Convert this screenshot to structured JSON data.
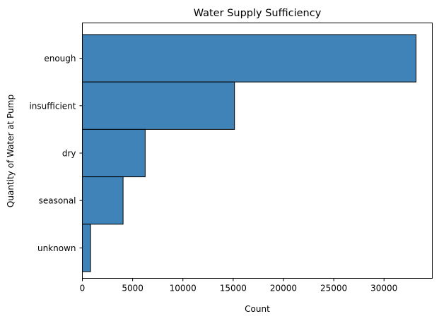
{
  "chart_data": {
    "type": "bar",
    "orientation": "horizontal",
    "title": "Water Supply Sufficiency",
    "xlabel": "Count",
    "ylabel": "Quantity of Water at Pump",
    "categories": [
      "enough",
      "insufficient",
      "dry",
      "seasonal",
      "unknown"
    ],
    "values": [
      33186,
      15129,
      6246,
      4050,
      817
    ],
    "xlim": [
      0,
      34800
    ],
    "xticks": [
      0,
      5000,
      10000,
      15000,
      20000,
      25000,
      30000
    ],
    "grid": false,
    "bar_color": "#3f83b9",
    "bar_edge_color": "#000000"
  }
}
